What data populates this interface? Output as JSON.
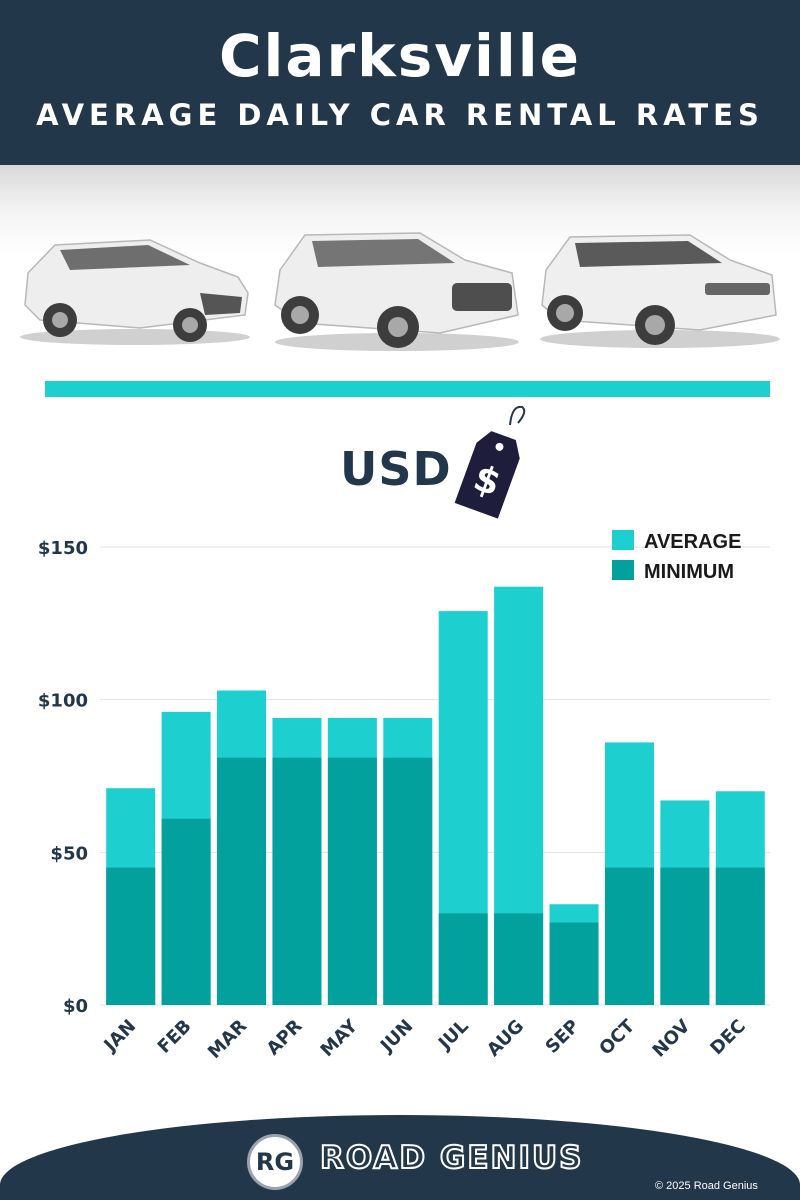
{
  "header": {
    "title": "Clarksville",
    "subtitle": "AVERAGE DAILY CAR RENTAL RATES"
  },
  "currency": {
    "label": "USD",
    "tag_symbol": "$"
  },
  "icons": [
    "car-hatchback-icon",
    "car-suv-icon",
    "car-luxury-suv-icon",
    "price-tag-icon"
  ],
  "colors": {
    "navy": "#23374b",
    "average": "#1ecfcf",
    "minimum": "#03a19d",
    "grid": "#e3e3e3"
  },
  "chart_data": {
    "type": "bar",
    "stacked": "overlay",
    "categories": [
      "JAN",
      "FEB",
      "MAR",
      "APR",
      "MAY",
      "JUN",
      "JUL",
      "AUG",
      "SEP",
      "OCT",
      "NOV",
      "DEC"
    ],
    "series": [
      {
        "name": "AVERAGE",
        "values": [
          71,
          96,
          103,
          94,
          94,
          94,
          129,
          137,
          33,
          86,
          67,
          70
        ]
      },
      {
        "name": "MINIMUM",
        "values": [
          45,
          61,
          81,
          81,
          81,
          81,
          30,
          30,
          27,
          45,
          45,
          45
        ]
      }
    ],
    "yticks": [
      "$0",
      "$50",
      "$100",
      "$150"
    ],
    "ytick_values": [
      0,
      50,
      100,
      150
    ],
    "ylim": [
      0,
      150
    ],
    "grid": true,
    "legend": "top-right"
  },
  "footer": {
    "logo_initials": "RG",
    "brand": "ROAD GENIUS",
    "copyright": "© 2025 Road Genius"
  }
}
